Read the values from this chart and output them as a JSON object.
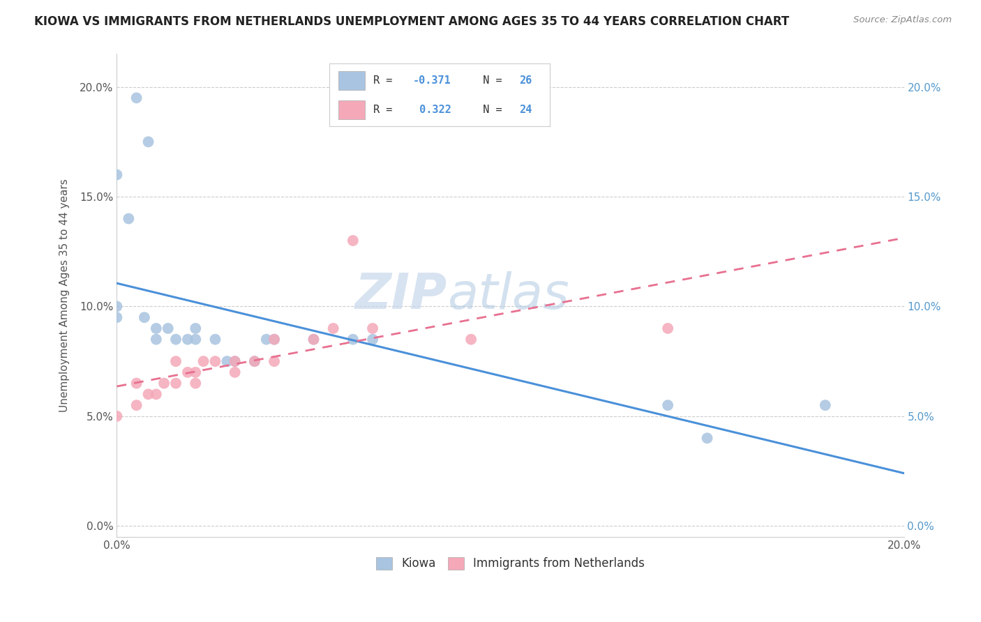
{
  "title": "KIOWA VS IMMIGRANTS FROM NETHERLANDS UNEMPLOYMENT AMONG AGES 35 TO 44 YEARS CORRELATION CHART",
  "source": "Source: ZipAtlas.com",
  "ylabel": "Unemployment Among Ages 35 to 44 years",
  "series1_label": "Kiowa",
  "series2_label": "Immigrants from Netherlands",
  "R1": -0.371,
  "N1": 26,
  "R2": 0.322,
  "N2": 24,
  "color1": "#a8c4e0",
  "color2": "#f4a8b8",
  "line_color1": "#4a90d9",
  "line_color2": "#e87090",
  "xlim": [
    0.0,
    0.2
  ],
  "ylim": [
    -0.005,
    0.215
  ],
  "xticks": [
    0.0,
    0.05,
    0.1,
    0.15,
    0.2
  ],
  "yticks": [
    0.0,
    0.05,
    0.1,
    0.15,
    0.2
  ],
  "kiowa_x": [
    0.005,
    0.008,
    0.0,
    0.003,
    0.0,
    0.0,
    0.007,
    0.01,
    0.01,
    0.015,
    0.013,
    0.018,
    0.02,
    0.02,
    0.025,
    0.028,
    0.03,
    0.035,
    0.038,
    0.04,
    0.05,
    0.06,
    0.065,
    0.14,
    0.15,
    0.18
  ],
  "kiowa_y": [
    0.195,
    0.175,
    0.16,
    0.14,
    0.095,
    0.1,
    0.095,
    0.09,
    0.085,
    0.085,
    0.09,
    0.085,
    0.09,
    0.085,
    0.085,
    0.075,
    0.075,
    0.075,
    0.085,
    0.085,
    0.085,
    0.085,
    0.085,
    0.055,
    0.04,
    0.055
  ],
  "netherlands_x": [
    0.0,
    0.005,
    0.005,
    0.008,
    0.01,
    0.012,
    0.015,
    0.015,
    0.018,
    0.02,
    0.02,
    0.022,
    0.025,
    0.03,
    0.03,
    0.035,
    0.04,
    0.04,
    0.05,
    0.055,
    0.06,
    0.065,
    0.09,
    0.14
  ],
  "netherlands_y": [
    0.05,
    0.055,
    0.065,
    0.06,
    0.06,
    0.065,
    0.065,
    0.075,
    0.07,
    0.065,
    0.07,
    0.075,
    0.075,
    0.07,
    0.075,
    0.075,
    0.075,
    0.085,
    0.085,
    0.09,
    0.13,
    0.09,
    0.085,
    0.09
  ],
  "background_color": "#ffffff",
  "watermark_zip": "ZIP",
  "watermark_atlas": "atlas",
  "right_axis_color": "#5599cc"
}
